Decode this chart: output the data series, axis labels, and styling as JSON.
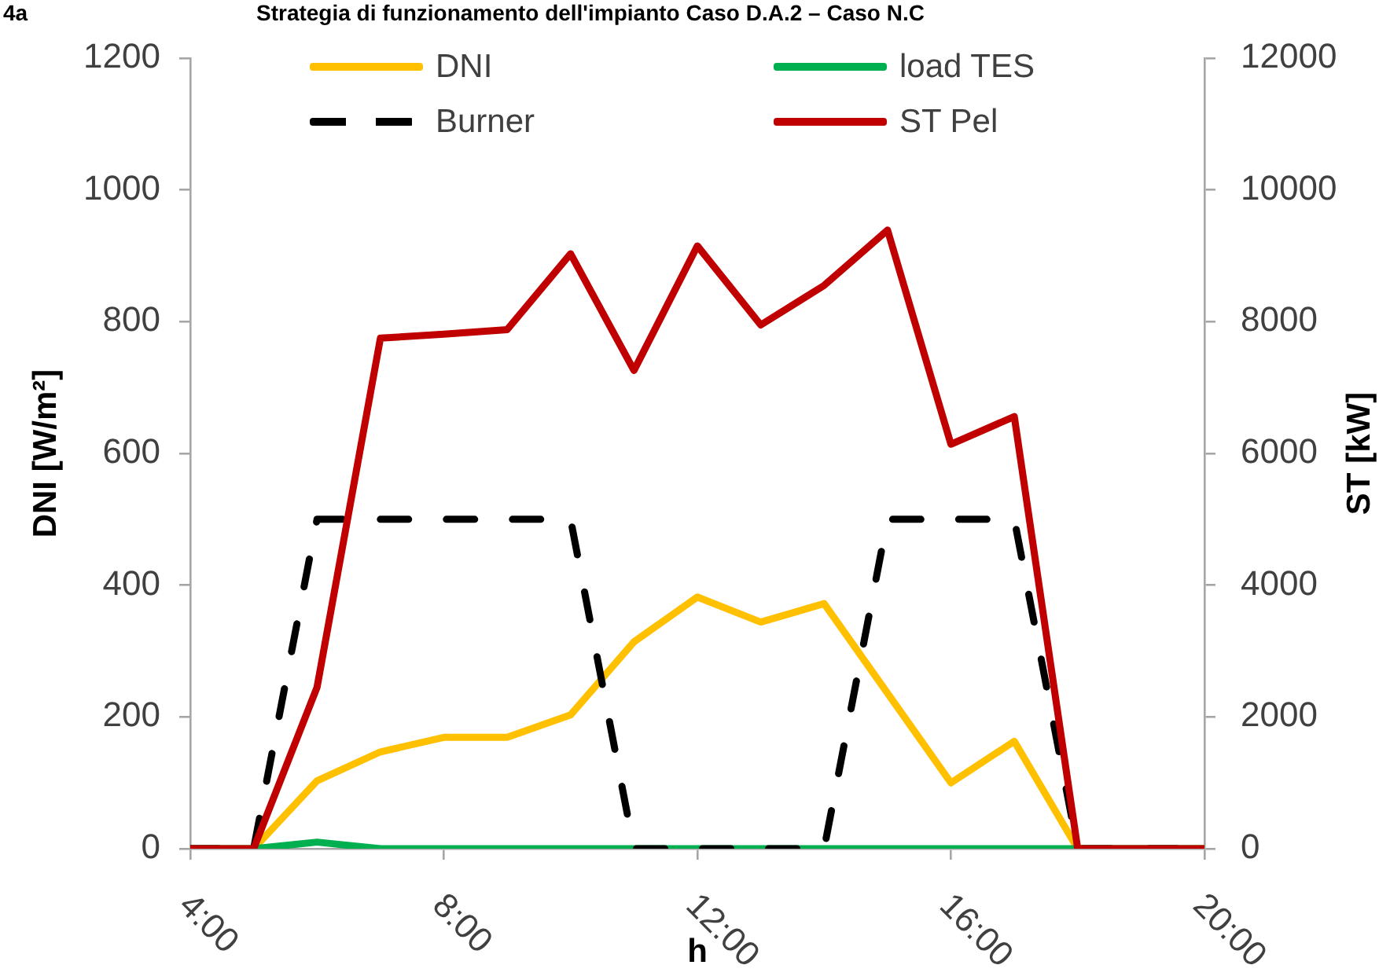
{
  "chart_data": {
    "type": "line",
    "title": "Strategia di funzionamento dell'impianto Caso D.A.2 – Caso N.C",
    "annotations": [
      "4a"
    ],
    "xlabel": "h",
    "ylabel": "DNI [W/m²]",
    "y2label": "ST [kW]",
    "x": [
      4,
      5,
      6,
      7,
      8,
      9,
      10,
      11,
      12,
      13,
      14,
      15,
      16,
      17,
      18,
      19,
      20
    ],
    "xlim": [
      4,
      20
    ],
    "xticks": [
      {
        "value": 4,
        "label": "4:00"
      },
      {
        "value": 8,
        "label": "8:00"
      },
      {
        "value": 12,
        "label": "12:00"
      },
      {
        "value": 16,
        "label": "16:00"
      },
      {
        "value": 20,
        "label": "20:00"
      }
    ],
    "ylim": [
      0,
      1200
    ],
    "yticks": [
      0,
      200,
      400,
      600,
      800,
      1000,
      1200
    ],
    "y2lim": [
      0,
      12000
    ],
    "y2ticks": [
      0,
      2000,
      4000,
      6000,
      8000,
      10000,
      12000
    ],
    "grid": false,
    "legend": "top",
    "marker": "none",
    "series": [
      {
        "name": "DNI",
        "color": "#ffc000",
        "values": [
          0,
          0,
          103,
          147,
          169,
          169,
          203,
          314,
          382,
          344,
          372,
          236,
          100,
          163,
          0,
          0,
          0
        ]
      },
      {
        "name": "load TES",
        "color": "#00b050",
        "axis": "y2",
        "values": [
          0,
          0,
          100,
          0,
          0,
          0,
          0,
          0,
          0,
          0,
          0,
          0,
          0,
          0,
          0,
          0,
          0
        ]
      },
      {
        "name": "Burner",
        "color": "#000000",
        "axis": "y2",
        "line_style": "dashed",
        "values": [
          0,
          0,
          5000,
          5000,
          5000,
          5000,
          5000,
          0,
          0,
          0,
          0,
          5000,
          5000,
          5000,
          0,
          0,
          0
        ]
      },
      {
        "name": "ST Pel",
        "color": "#c00000",
        "axis": "y2",
        "values": [
          0,
          0,
          2450,
          7750,
          7810,
          7880,
          9030,
          7260,
          9150,
          7950,
          8550,
          9390,
          6140,
          6560,
          0,
          0,
          0
        ]
      }
    ]
  }
}
